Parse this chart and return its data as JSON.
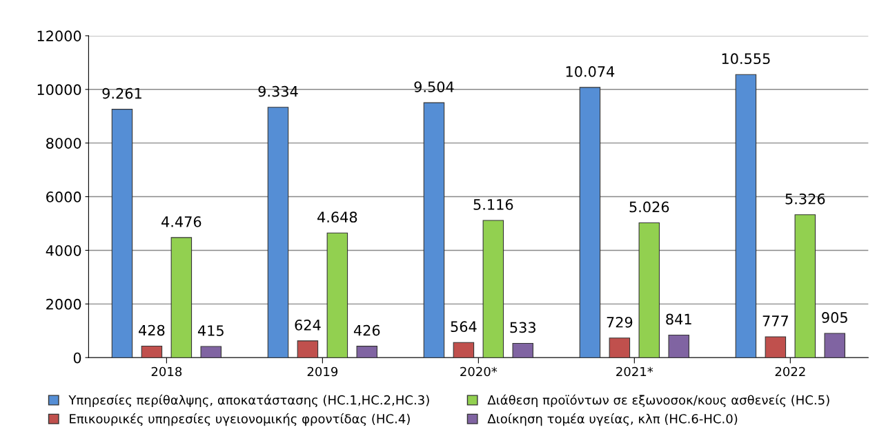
{
  "chart_data": {
    "type": "bar",
    "categories": [
      "2018",
      "2019",
      "2020*",
      "2021*",
      "2022"
    ],
    "series": [
      {
        "name": "Υπηρεσίες περίθαλψης, αποκατάστασης (HC.1,HC.2,HC.3)",
        "color": "#558ed5",
        "values": [
          9261,
          9334,
          9504,
          10074,
          10555
        ],
        "value_labels": [
          "9.261",
          "9.334",
          "9.504",
          "10.074",
          "10.555"
        ]
      },
      {
        "name": "Επικουρικές υπηρεσίες υγειονομικής φροντίδας (HC.4)",
        "color": "#c0504d",
        "values": [
          428,
          624,
          564,
          729,
          777
        ],
        "value_labels": [
          "428",
          "624",
          "564",
          "729",
          "777"
        ]
      },
      {
        "name": "Διάθεση προϊόντων σε εξωνοσοκ/κους ασθενείς (HC.5)",
        "color": "#92d050",
        "values": [
          4476,
          4648,
          5116,
          5026,
          5326
        ],
        "value_labels": [
          "4.476",
          "4.648",
          "5.116",
          "5.026",
          "5.326"
        ]
      },
      {
        "name": "Διοίκηση τομέα υγείας, κλπ (HC.6-HC.0)",
        "color": "#8064a2",
        "values": [
          415,
          426,
          533,
          841,
          905
        ],
        "value_labels": [
          "415",
          "426",
          "533",
          "841",
          "905"
        ]
      }
    ],
    "ylim": [
      0,
      12000
    ],
    "yticks": [
      0,
      2000,
      4000,
      6000,
      8000,
      10000,
      12000
    ],
    "grid": "y",
    "legend": "bottom"
  }
}
